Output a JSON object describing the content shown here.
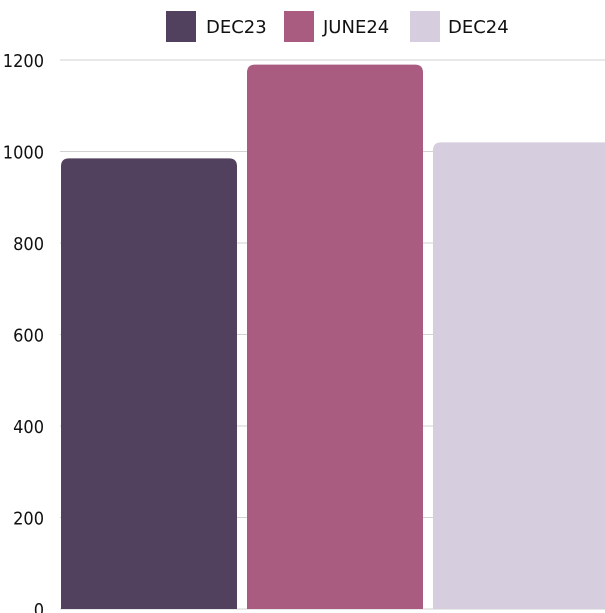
{
  "chart_data": {
    "type": "bar",
    "categories": [
      "DEC23",
      "JUNE24",
      "DEC24"
    ],
    "values": [
      985,
      1190,
      1020
    ],
    "colors": [
      "#52405F",
      "#A95C80",
      "#D6CEDE"
    ],
    "legend": {
      "items": [
        "DEC23",
        "JUNE24",
        "DEC24"
      ],
      "position": "top-center"
    },
    "ylim": [
      0,
      1200
    ],
    "yticks": [
      0,
      200,
      400,
      600,
      800,
      1000,
      1200
    ],
    "grid": true,
    "title": "",
    "xlabel": "",
    "ylabel": ""
  }
}
